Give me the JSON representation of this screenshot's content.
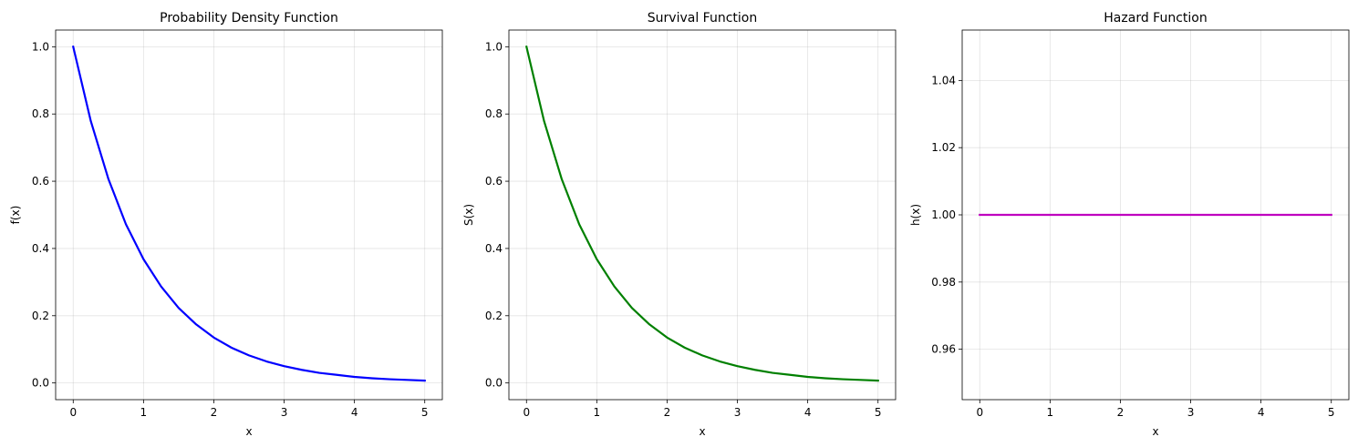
{
  "chart_data": [
    {
      "type": "line",
      "title": "Probability Density Function",
      "xlabel": "x",
      "ylabel": "f(x)",
      "xlim": [
        -0.25,
        5.25
      ],
      "ylim": [
        -0.0497,
        1.0497
      ],
      "xticks": [
        0,
        1,
        2,
        3,
        4,
        5
      ],
      "xtick_labels": [
        "0",
        "1",
        "2",
        "3",
        "4",
        "5"
      ],
      "yticks": [
        0.0,
        0.2,
        0.4,
        0.6,
        0.8,
        1.0
      ],
      "ytick_labels": [
        "0.0",
        "0.2",
        "0.4",
        "0.6",
        "0.8",
        "1.0"
      ],
      "grid": true,
      "series": [
        {
          "color": "#0000ff",
          "x": [
            0,
            0.25,
            0.5,
            0.75,
            1,
            1.25,
            1.5,
            1.75,
            2,
            2.25,
            2.5,
            2.75,
            3,
            3.25,
            3.5,
            3.75,
            4,
            4.25,
            4.5,
            4.75,
            5
          ],
          "y": [
            1.0,
            0.779,
            0.607,
            0.472,
            0.368,
            0.287,
            0.223,
            0.174,
            0.135,
            0.105,
            0.082,
            0.064,
            0.05,
            0.039,
            0.03,
            0.024,
            0.018,
            0.014,
            0.011,
            0.009,
            0.007
          ]
        }
      ]
    },
    {
      "type": "line",
      "title": "Survival Function",
      "xlabel": "x",
      "ylabel": "S(x)",
      "xlim": [
        -0.25,
        5.25
      ],
      "ylim": [
        -0.0497,
        1.0497
      ],
      "xticks": [
        0,
        1,
        2,
        3,
        4,
        5
      ],
      "xtick_labels": [
        "0",
        "1",
        "2",
        "3",
        "4",
        "5"
      ],
      "yticks": [
        0.0,
        0.2,
        0.4,
        0.6,
        0.8,
        1.0
      ],
      "ytick_labels": [
        "0.0",
        "0.2",
        "0.4",
        "0.6",
        "0.8",
        "1.0"
      ],
      "grid": true,
      "series": [
        {
          "color": "#008000",
          "x": [
            0,
            0.25,
            0.5,
            0.75,
            1,
            1.25,
            1.5,
            1.75,
            2,
            2.25,
            2.5,
            2.75,
            3,
            3.25,
            3.5,
            3.75,
            4,
            4.25,
            4.5,
            4.75,
            5
          ],
          "y": [
            1.0,
            0.779,
            0.607,
            0.472,
            0.368,
            0.287,
            0.223,
            0.174,
            0.135,
            0.105,
            0.082,
            0.064,
            0.05,
            0.039,
            0.03,
            0.024,
            0.018,
            0.014,
            0.011,
            0.009,
            0.007
          ]
        }
      ]
    },
    {
      "type": "line",
      "title": "Hazard Function",
      "xlabel": "x",
      "ylabel": "h(x)",
      "xlim": [
        -0.25,
        5.25
      ],
      "ylim": [
        0.945,
        1.055
      ],
      "xticks": [
        0,
        1,
        2,
        3,
        4,
        5
      ],
      "xtick_labels": [
        "0",
        "1",
        "2",
        "3",
        "4",
        "5"
      ],
      "yticks": [
        0.96,
        0.98,
        1.0,
        1.02,
        1.04
      ],
      "ytick_labels": [
        "0.96",
        "0.98",
        "1.00",
        "1.02",
        "1.04"
      ],
      "grid": true,
      "series": [
        {
          "color": "#bf00bf",
          "x": [
            0,
            5
          ],
          "y": [
            1.0,
            1.0
          ]
        }
      ]
    }
  ]
}
